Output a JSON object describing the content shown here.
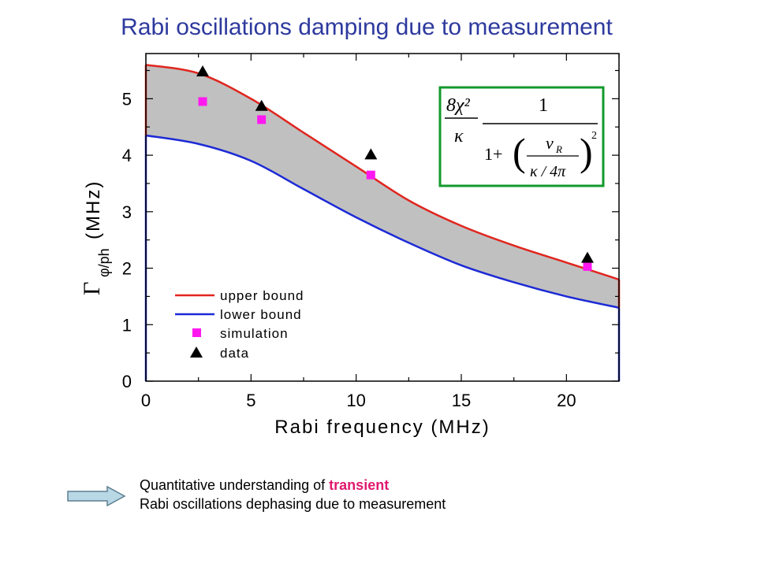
{
  "slide": {
    "title": "Rabi oscillations damping due to measurement"
  },
  "chart_data": {
    "type": "line",
    "xlabel": "Rabi frequency (MHz)",
    "ylabel_symbol": "Γ",
    "ylabel_subscript": "φ/ph",
    "ylabel_unit": "(MHz)",
    "xlim": [
      0,
      22.5
    ],
    "ylim": [
      0,
      5.8
    ],
    "xticks": [
      0,
      5,
      10,
      15,
      20
    ],
    "yticks": [
      0,
      1,
      2,
      3,
      4,
      5
    ],
    "grid": false,
    "legend_position": "bottom-left",
    "x": [
      0,
      2.5,
      5,
      7.5,
      10,
      12.5,
      15,
      17.5,
      20,
      22.5
    ],
    "series": [
      {
        "name": "upper bound",
        "kind": "line",
        "color": "#e0261f",
        "values": [
          5.6,
          5.45,
          5.0,
          4.4,
          3.8,
          3.2,
          2.75,
          2.4,
          2.1,
          1.8
        ]
      },
      {
        "name": "lower bound",
        "kind": "line",
        "color": "#1c2ad6",
        "values": [
          4.35,
          4.2,
          3.9,
          3.4,
          2.9,
          2.45,
          2.05,
          1.75,
          1.5,
          1.3
        ]
      },
      {
        "name": "simulation",
        "kind": "square",
        "color": "#ff19f0",
        "x": [
          2.7,
          5.5,
          10.7,
          21.0
        ],
        "values": [
          4.95,
          4.63,
          3.65,
          2.03
        ]
      },
      {
        "name": "data",
        "kind": "triangle",
        "color": "#000000",
        "x": [
          2.7,
          5.5,
          10.7,
          21.0
        ],
        "values": [
          5.48,
          4.87,
          4.01,
          2.18
        ]
      }
    ],
    "band_fill": "#c0c0c0",
    "annotation": {
      "type": "formula",
      "border_color": "#139a2c",
      "numerator_left": "8χ²",
      "denominator_left": "κ",
      "numerator_right": "1",
      "denominator_prefix": "1+",
      "inner_numerator": "ν",
      "inner_numerator_sub": "R",
      "inner_denominator": "κ / 4π",
      "exponent": "2"
    }
  },
  "footer": {
    "line1_before": "Quantitative understanding of ",
    "line1_highlight": "transient",
    "line2": "Rabi oscillations dephasing due to measurement"
  }
}
